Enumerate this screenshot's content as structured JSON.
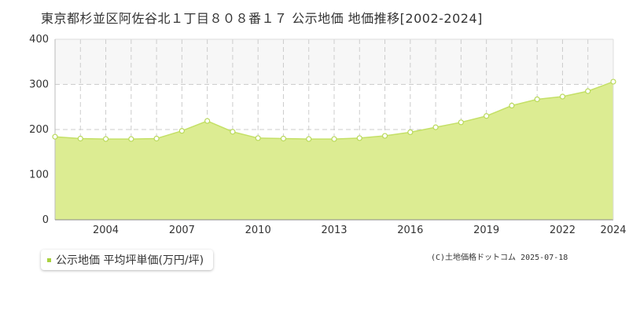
{
  "title": "東京都杉並区阿佐谷北１丁目８０８番１７ 公示地価 地価推移[2002-2024]",
  "legend_label": "公示地価 平均坪単価(万円/坪)",
  "copyright": "(C)土地価格ドットコム 2025-07-18",
  "colors": {
    "fill": "#dcec92",
    "line": "#c4e067",
    "point_stroke": "#b9d95a",
    "grid": "#cccccc",
    "band": "#f7f7f7",
    "legend_swatch": "#a9d13f"
  },
  "chart_data": {
    "type": "area",
    "title": "東京都杉並区阿佐谷北１丁目８０８番１７ 公示地価 地価推移[2002-2024]",
    "x": [
      2002,
      2003,
      2004,
      2005,
      2006,
      2007,
      2008,
      2009,
      2010,
      2011,
      2012,
      2013,
      2014,
      2015,
      2016,
      2017,
      2018,
      2019,
      2020,
      2021,
      2022,
      2023,
      2024
    ],
    "series": [
      {
        "name": "公示地価 平均坪単価(万円/坪)",
        "values": [
          184,
          180,
          179,
          179,
          180,
          197,
          219,
          195,
          181,
          180,
          179,
          179,
          181,
          186,
          194,
          205,
          216,
          230,
          253,
          267,
          273,
          285,
          306
        ]
      }
    ],
    "xticks": [
      "2004",
      "2007",
      "2010",
      "2013",
      "2016",
      "2019",
      "2022",
      "2024"
    ],
    "yticks": [
      "0",
      "100",
      "200",
      "300",
      "400"
    ],
    "xlim": [
      2002,
      2024
    ],
    "ylim": [
      0,
      400
    ],
    "xlabel": "",
    "ylabel": "",
    "grid": true,
    "legend_position": "bottom-left"
  }
}
